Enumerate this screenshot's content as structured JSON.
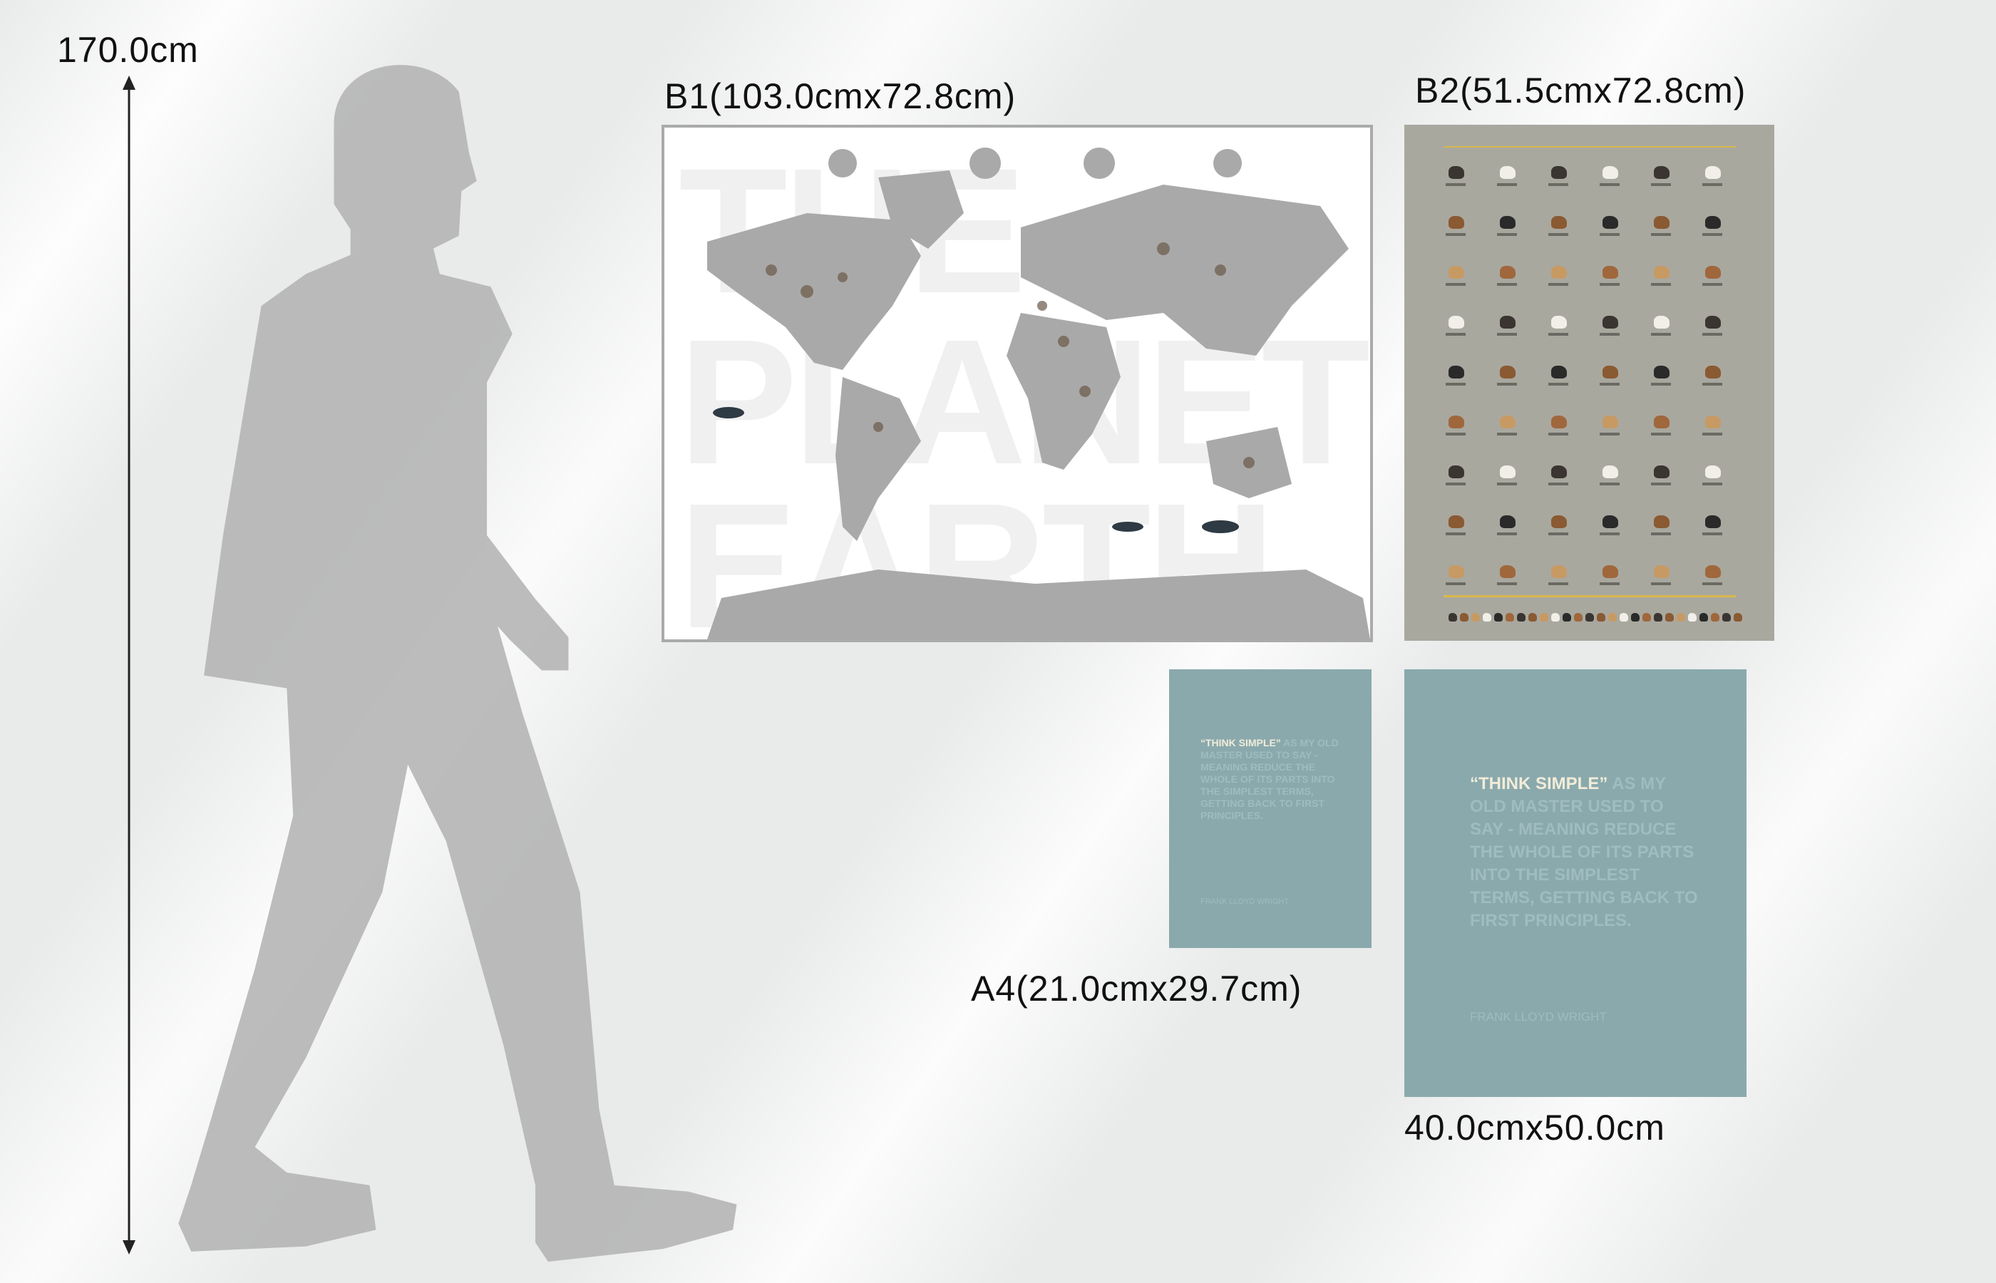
{
  "height_ruler": {
    "label": "170.0cm"
  },
  "posters": [
    {
      "id": "b1",
      "label": "B1(103.0cmx72.8cm)",
      "watermark": [
        "THE",
        "PLANET",
        "EARTH"
      ]
    },
    {
      "id": "b2",
      "label": "B2(51.5cmx72.8cm)"
    },
    {
      "id": "a4",
      "label": "A4(21.0cmx29.7cm)",
      "quote_highlight": "“THINK SIMPLE”",
      "quote_rest": " AS MY OLD MASTER USED TO SAY - MEANING REDUCE THE WHOLE OF ITS PARTS INTO THE SIMPLEST TERMS, GETTING BACK TO FIRST PRINCIPLES.",
      "author": "FRANK LLOYD WRIGHT"
    },
    {
      "id": "p40",
      "label": "40.0cmx50.0cm",
      "quote_highlight": "“THINK SIMPLE”",
      "quote_rest": " AS MY OLD MASTER USED TO SAY - MEANING REDUCE THE WHOLE OF ITS PARTS INTO THE SIMPLEST TERMS, GETTING BACK TO FIRST PRINCIPLES.",
      "author": "FRANK LLOYD WRIGHT"
    }
  ],
  "colors": {
    "silhouette": "#b5b5b5",
    "quote_poster": "#8aa9ad",
    "dog_poster": "#a9a89f",
    "map_land": "#a9a9a9"
  }
}
